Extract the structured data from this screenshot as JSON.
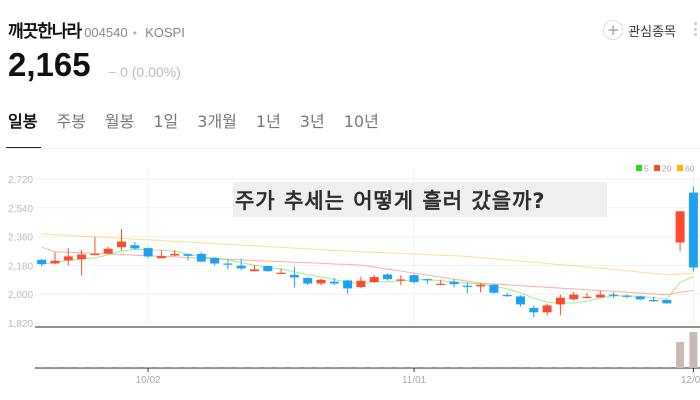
{
  "stock": {
    "name": "깨끗한나라",
    "code": "004540",
    "market": "KOSPI",
    "price": "2,165",
    "change": "0 (0.00%)",
    "change_sign": "−"
  },
  "watchlist": {
    "label": "관심종목",
    "icon": "plus-icon"
  },
  "tabs": [
    {
      "label": "일봉",
      "active": true
    },
    {
      "label": "주봉"
    },
    {
      "label": "월봉"
    },
    {
      "label": "1일"
    },
    {
      "label": "3개월"
    },
    {
      "label": "1년"
    },
    {
      "label": "3년"
    },
    {
      "label": "10년"
    }
  ],
  "overlay_text": "주가 추세는 어떻게 흘러 갔을까?",
  "colors": {
    "up": "#ff4a2d",
    "down": "#1ea1f2",
    "ma5": "#22dd22",
    "ma20": "#ff4a2d",
    "ma60": "#ffb300",
    "volume": "#c6bbb5"
  },
  "chart_data": {
    "type": "candlestick",
    "ylim": [
      1820,
      2720
    ],
    "yticks": [
      "2,720",
      "2,540",
      "2,360",
      "2,180",
      "2,000",
      "1,820"
    ],
    "ytick_values": [
      2720,
      2540,
      2360,
      2180,
      2000,
      1820
    ],
    "xticks": [
      {
        "label": "10/02",
        "candle": 9
      },
      {
        "label": "11/01",
        "candle": 29
      },
      {
        "label": "12/02",
        "candle": 50
      }
    ],
    "grid": true,
    "legend": {
      "placement": "top-right",
      "entries": [
        "5",
        "20",
        "60"
      ]
    },
    "candles": [
      [
        2215,
        2221,
        2174,
        2188
      ],
      [
        2192,
        2263,
        2188,
        2209
      ],
      [
        2211,
        2288,
        2180,
        2236
      ],
      [
        2219,
        2277,
        2117,
        2248
      ],
      [
        2246,
        2356,
        2244,
        2252
      ],
      [
        2254,
        2296,
        2250,
        2284
      ],
      [
        2294,
        2408,
        2273,
        2329
      ],
      [
        2306,
        2327,
        2278,
        2286
      ],
      [
        2288,
        2292,
        2225,
        2236
      ],
      [
        2225,
        2277,
        2225,
        2238
      ],
      [
        2242,
        2277,
        2238,
        2252
      ],
      [
        2250,
        2254,
        2211,
        2240
      ],
      [
        2252,
        2261,
        2202,
        2204
      ],
      [
        2227,
        2232,
        2180,
        2192
      ],
      [
        2192,
        2215,
        2157,
        2190
      ],
      [
        2178,
        2223,
        2149,
        2161
      ],
      [
        2144,
        2182,
        2142,
        2155
      ],
      [
        2176,
        2178,
        2140,
        2144
      ],
      [
        2130,
        2161,
        2128,
        2134
      ],
      [
        2121,
        2171,
        2042,
        2105
      ],
      [
        2101,
        2107,
        2057,
        2067
      ],
      [
        2067,
        2096,
        2055,
        2090
      ],
      [
        2078,
        2101,
        2057,
        2067
      ],
      [
        2086,
        2090,
        2003,
        2036
      ],
      [
        2045,
        2109,
        2038,
        2084
      ],
      [
        2076,
        2119,
        2071,
        2107
      ],
      [
        2123,
        2130,
        2086,
        2094
      ],
      [
        2088,
        2119,
        2057,
        2092
      ],
      [
        2119,
        2123,
        2065,
        2076
      ],
      [
        2094,
        2098,
        2065,
        2088
      ],
      [
        2061,
        2090,
        2059,
        2065
      ],
      [
        2078,
        2096,
        2042,
        2063
      ],
      [
        2053,
        2076,
        2005,
        2049
      ],
      [
        2049,
        2069,
        2011,
        2059
      ],
      [
        2059,
        2063,
        2003,
        2009
      ],
      [
        1995,
        2009,
        1984,
        1988
      ],
      [
        1986,
        1993,
        1922,
        1936
      ],
      [
        1914,
        1930,
        1855,
        1887
      ],
      [
        1887,
        1941,
        1868,
        1930
      ],
      [
        1936,
        1997,
        1868,
        1978
      ],
      [
        1968,
        2015,
        1961,
        1997
      ],
      [
        1976,
        2009,
        1974,
        1984
      ],
      [
        1980,
        2020,
        1978,
        1997
      ],
      [
        1997,
        2011,
        1976,
        1991
      ],
      [
        1991,
        1997,
        1976,
        1984
      ],
      [
        1986,
        1991,
        1964,
        1968
      ],
      [
        1964,
        1984,
        1951,
        1957
      ],
      [
        1964,
        1966,
        1941,
        1943
      ],
      [
        2323,
        2520,
        2267,
        2518
      ],
      [
        2635,
        2672,
        2142,
        2167
      ]
    ],
    "ma20": [
      2294,
      2265,
      2262,
      2258,
      2255,
      2252,
      2248,
      2244,
      2240,
      2236,
      2233,
      2229,
      2225,
      2222,
      2218,
      2214,
      2211,
      2207,
      2204,
      2200,
      2196,
      2193,
      2189,
      2186,
      2182,
      2170,
      2157,
      2145,
      2132,
      2120,
      2107,
      2094,
      2082,
      2069,
      2064,
      2059,
      2054,
      2048,
      2043,
      2038,
      2033,
      2028,
      2023,
      2018,
      2012,
      2007,
      2002,
      1997,
      2012,
      2024
    ],
    "ma60": [
      2377,
      2372,
      2368,
      2363,
      2358,
      2354,
      2349,
      2344,
      2340,
      2335,
      2330,
      2326,
      2321,
      2316,
      2312,
      2307,
      2302,
      2298,
      2293,
      2288,
      2284,
      2279,
      2274,
      2270,
      2265,
      2262,
      2258,
      2255,
      2251,
      2248,
      2244,
      2240,
      2236,
      2229,
      2222,
      2214,
      2207,
      2200,
      2192,
      2185,
      2178,
      2170,
      2163,
      2155,
      2146,
      2138,
      2130,
      2121,
      2126,
      2132
    ],
    "volume_relative": [
      4,
      4,
      4,
      2,
      4,
      2,
      4,
      4,
      2,
      2,
      2,
      2,
      2,
      4,
      4,
      2,
      2,
      2,
      2,
      2,
      2,
      2,
      4,
      4,
      2,
      2,
      2,
      2,
      2,
      2,
      2,
      2,
      2,
      4,
      4,
      4,
      4,
      2,
      2,
      2,
      2,
      2,
      2,
      2,
      2,
      2,
      2,
      2,
      72,
      100
    ]
  }
}
